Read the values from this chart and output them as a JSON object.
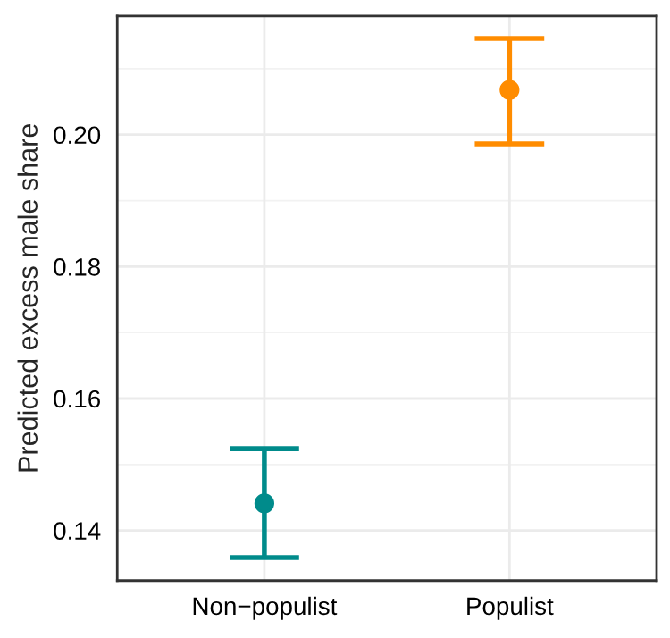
{
  "chart_data": {
    "type": "scatter",
    "ylabel": "Predicted excess male share",
    "categories": [
      "Non−populist",
      "Populist"
    ],
    "values": [
      0.1441,
      0.2068
    ],
    "colors": [
      "#008b8b",
      "#ff8c00"
    ],
    "errors": [
      [
        0.1359,
        0.1524
      ],
      [
        0.1986,
        0.2146
      ]
    ],
    "ylim": [
      0.1324,
      0.218
    ],
    "yticks": [
      0.14,
      0.16,
      0.18,
      {
        "value": 0.2,
        "label": "0.20"
      }
    ],
    "grid": true,
    "marker": "circle"
  }
}
